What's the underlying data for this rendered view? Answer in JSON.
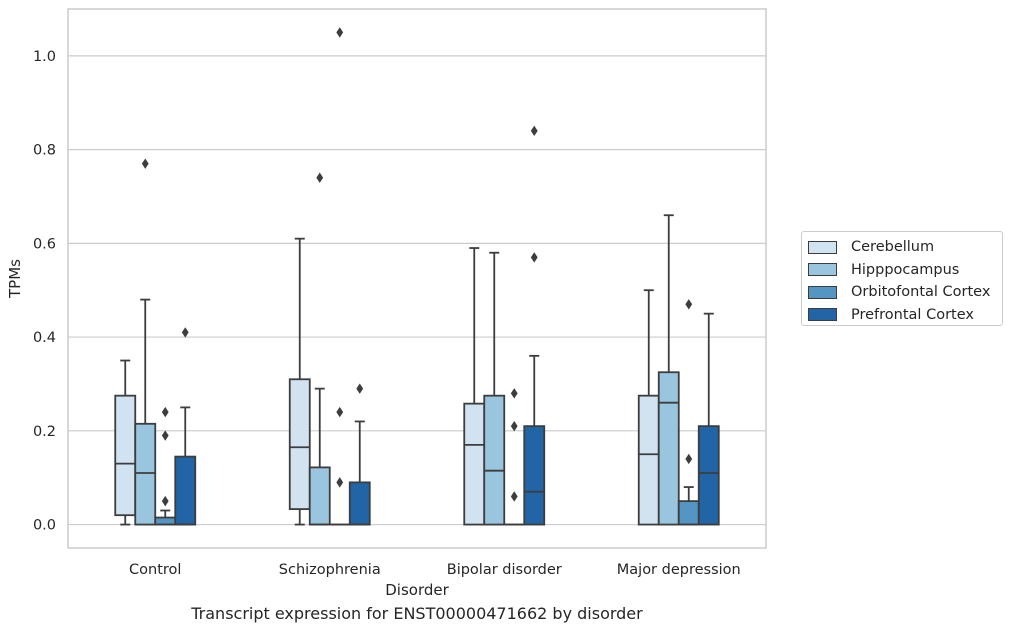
{
  "caption": "Transcript expression for ENST00000471662 by disorder",
  "chart_data": {
    "type": "box",
    "xlabel": "Disorder",
    "ylabel": "TPMs",
    "ylim": [
      -0.05,
      1.1
    ],
    "yticks": [
      "0.0",
      "0.2",
      "0.4",
      "0.6",
      "0.8",
      "1.0"
    ],
    "grid": "horizontal",
    "legend_position": "right",
    "categories": [
      "Control",
      "Schizophrenia",
      "Bipolar disorder",
      "Major depression"
    ],
    "series": [
      {
        "name": "Cerebellum",
        "color": "#d1e2f1",
        "boxes": [
          {
            "whisker_low": 0.0,
            "q1": 0.02,
            "median": 0.13,
            "q3": 0.275,
            "whisker_high": 0.35,
            "outliers": []
          },
          {
            "whisker_low": 0.0,
            "q1": 0.033,
            "median": 0.165,
            "q3": 0.31,
            "whisker_high": 0.61,
            "outliers": []
          },
          {
            "whisker_low": 0.0,
            "q1": 0.0,
            "median": 0.17,
            "q3": 0.258,
            "whisker_high": 0.59,
            "outliers": []
          },
          {
            "whisker_low": 0.0,
            "q1": 0.0,
            "median": 0.15,
            "q3": 0.275,
            "whisker_high": 0.5,
            "outliers": []
          }
        ]
      },
      {
        "name": "Hipppocampus",
        "color": "#9ac5df",
        "boxes": [
          {
            "whisker_low": 0.0,
            "q1": 0.0,
            "median": 0.11,
            "q3": 0.215,
            "whisker_high": 0.48,
            "outliers": [
              0.77
            ]
          },
          {
            "whisker_low": 0.0,
            "q1": 0.0,
            "median": 0.0,
            "q3": 0.122,
            "whisker_high": 0.29,
            "outliers": [
              0.74
            ]
          },
          {
            "whisker_low": 0.0,
            "q1": 0.0,
            "median": 0.115,
            "q3": 0.275,
            "whisker_high": 0.58,
            "outliers": []
          },
          {
            "whisker_low": 0.0,
            "q1": 0.0,
            "median": 0.26,
            "q3": 0.325,
            "whisker_high": 0.66,
            "outliers": []
          }
        ]
      },
      {
        "name": "Orbitofontal Cortex",
        "color": "#5495c4",
        "boxes": [
          {
            "whisker_low": 0.0,
            "q1": 0.0,
            "median": 0.0,
            "q3": 0.015,
            "whisker_high": 0.03,
            "outliers": [
              0.05,
              0.19,
              0.24
            ]
          },
          {
            "whisker_low": 0.0,
            "q1": 0.0,
            "median": 0.0,
            "q3": 0.0,
            "whisker_high": 0.0,
            "outliers": [
              0.09,
              0.24,
              1.05
            ]
          },
          {
            "whisker_low": 0.0,
            "q1": 0.0,
            "median": 0.0,
            "q3": 0.0,
            "whisker_high": 0.0,
            "outliers": [
              0.06,
              0.21,
              0.28
            ]
          },
          {
            "whisker_low": 0.0,
            "q1": 0.0,
            "median": 0.0,
            "q3": 0.05,
            "whisker_high": 0.08,
            "outliers": [
              0.14,
              0.47
            ]
          }
        ]
      },
      {
        "name": "Prefrontal Cortex",
        "color": "#2165a6",
        "boxes": [
          {
            "whisker_low": 0.0,
            "q1": 0.0,
            "median": 0.0,
            "q3": 0.145,
            "whisker_high": 0.25,
            "outliers": [
              0.41
            ]
          },
          {
            "whisker_low": 0.0,
            "q1": 0.0,
            "median": 0.0,
            "q3": 0.09,
            "whisker_high": 0.22,
            "outliers": [
              0.29
            ]
          },
          {
            "whisker_low": 0.0,
            "q1": 0.0,
            "median": 0.07,
            "q3": 0.21,
            "whisker_high": 0.36,
            "outliers": [
              0.57,
              0.84
            ]
          },
          {
            "whisker_low": 0.0,
            "q1": 0.0,
            "median": 0.11,
            "q3": 0.21,
            "whisker_high": 0.45,
            "outliers": []
          }
        ]
      }
    ]
  }
}
